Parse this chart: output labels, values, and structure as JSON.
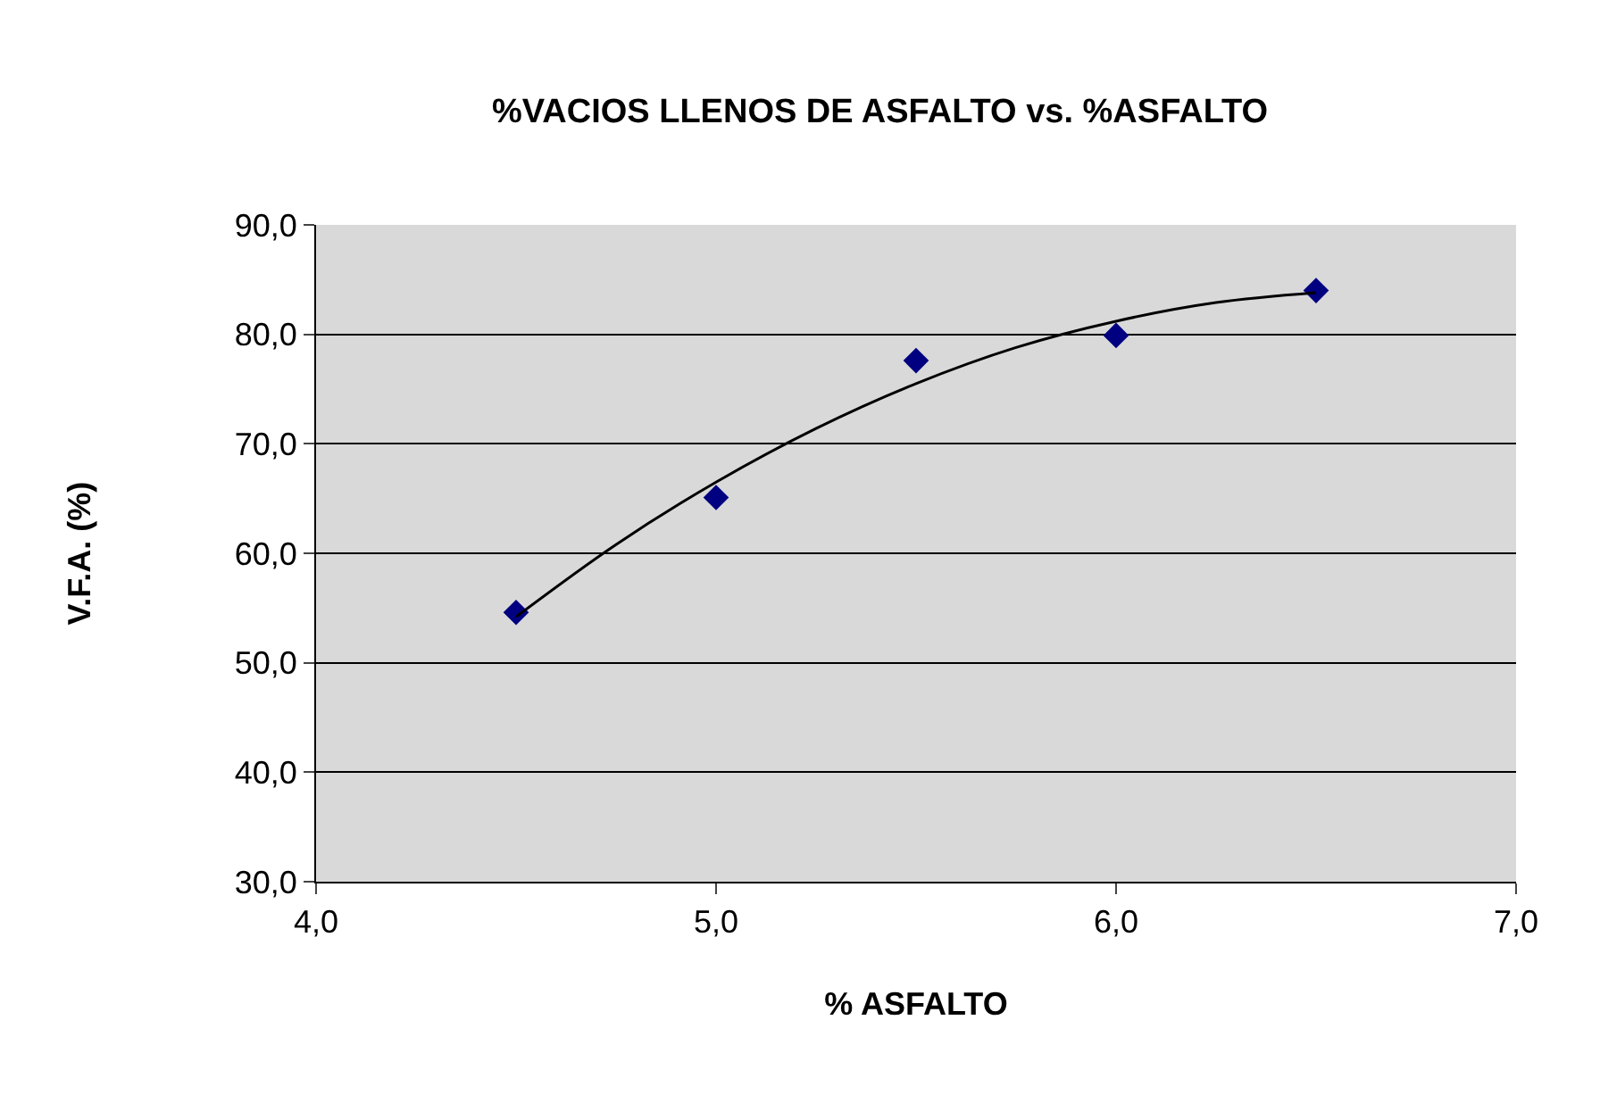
{
  "chart_data": {
    "type": "scatter",
    "title": "%VACIOS LLENOS DE ASFALTO vs. %ASFALTO",
    "xlabel": "% ASFALTO",
    "ylabel": "V.F.A. (%)",
    "series": [
      {
        "marker": "diamond",
        "color": "#000080",
        "x": [
          4.5,
          5.0,
          5.5,
          6.0,
          6.5
        ],
        "values": [
          54.6,
          65.1,
          77.6,
          79.9,
          84.0
        ]
      },
      {
        "type": "line",
        "marker": "none",
        "line_style": "solid",
        "color": "#000000",
        "x": [
          4.5,
          4.75,
          5.0,
          5.25,
          5.5,
          5.75,
          6.0,
          6.25,
          6.5
        ],
        "values": [
          54.2,
          60.8,
          66.5,
          71.4,
          75.5,
          78.8,
          81.2,
          82.9,
          83.8
        ]
      }
    ],
    "xlim": [
      4.0,
      7.0
    ],
    "xticks": [
      {
        "value": 4,
        "label": "4,0"
      },
      {
        "value": 5,
        "label": "5,0"
      },
      {
        "value": 6,
        "label": "6,0"
      },
      {
        "value": 7,
        "label": "7,0"
      }
    ],
    "ylim": [
      30,
      90
    ],
    "yticks": [
      {
        "value": 30,
        "label": "30,0"
      },
      {
        "value": 40,
        "label": "40,0"
      },
      {
        "value": 50,
        "label": "50,0"
      },
      {
        "value": 60,
        "label": "60,0"
      },
      {
        "value": 70,
        "label": "70,0"
      },
      {
        "value": 80,
        "label": "80,0"
      },
      {
        "value": 90,
        "label": "90,0"
      }
    ],
    "grid": "y",
    "legend": false
  }
}
